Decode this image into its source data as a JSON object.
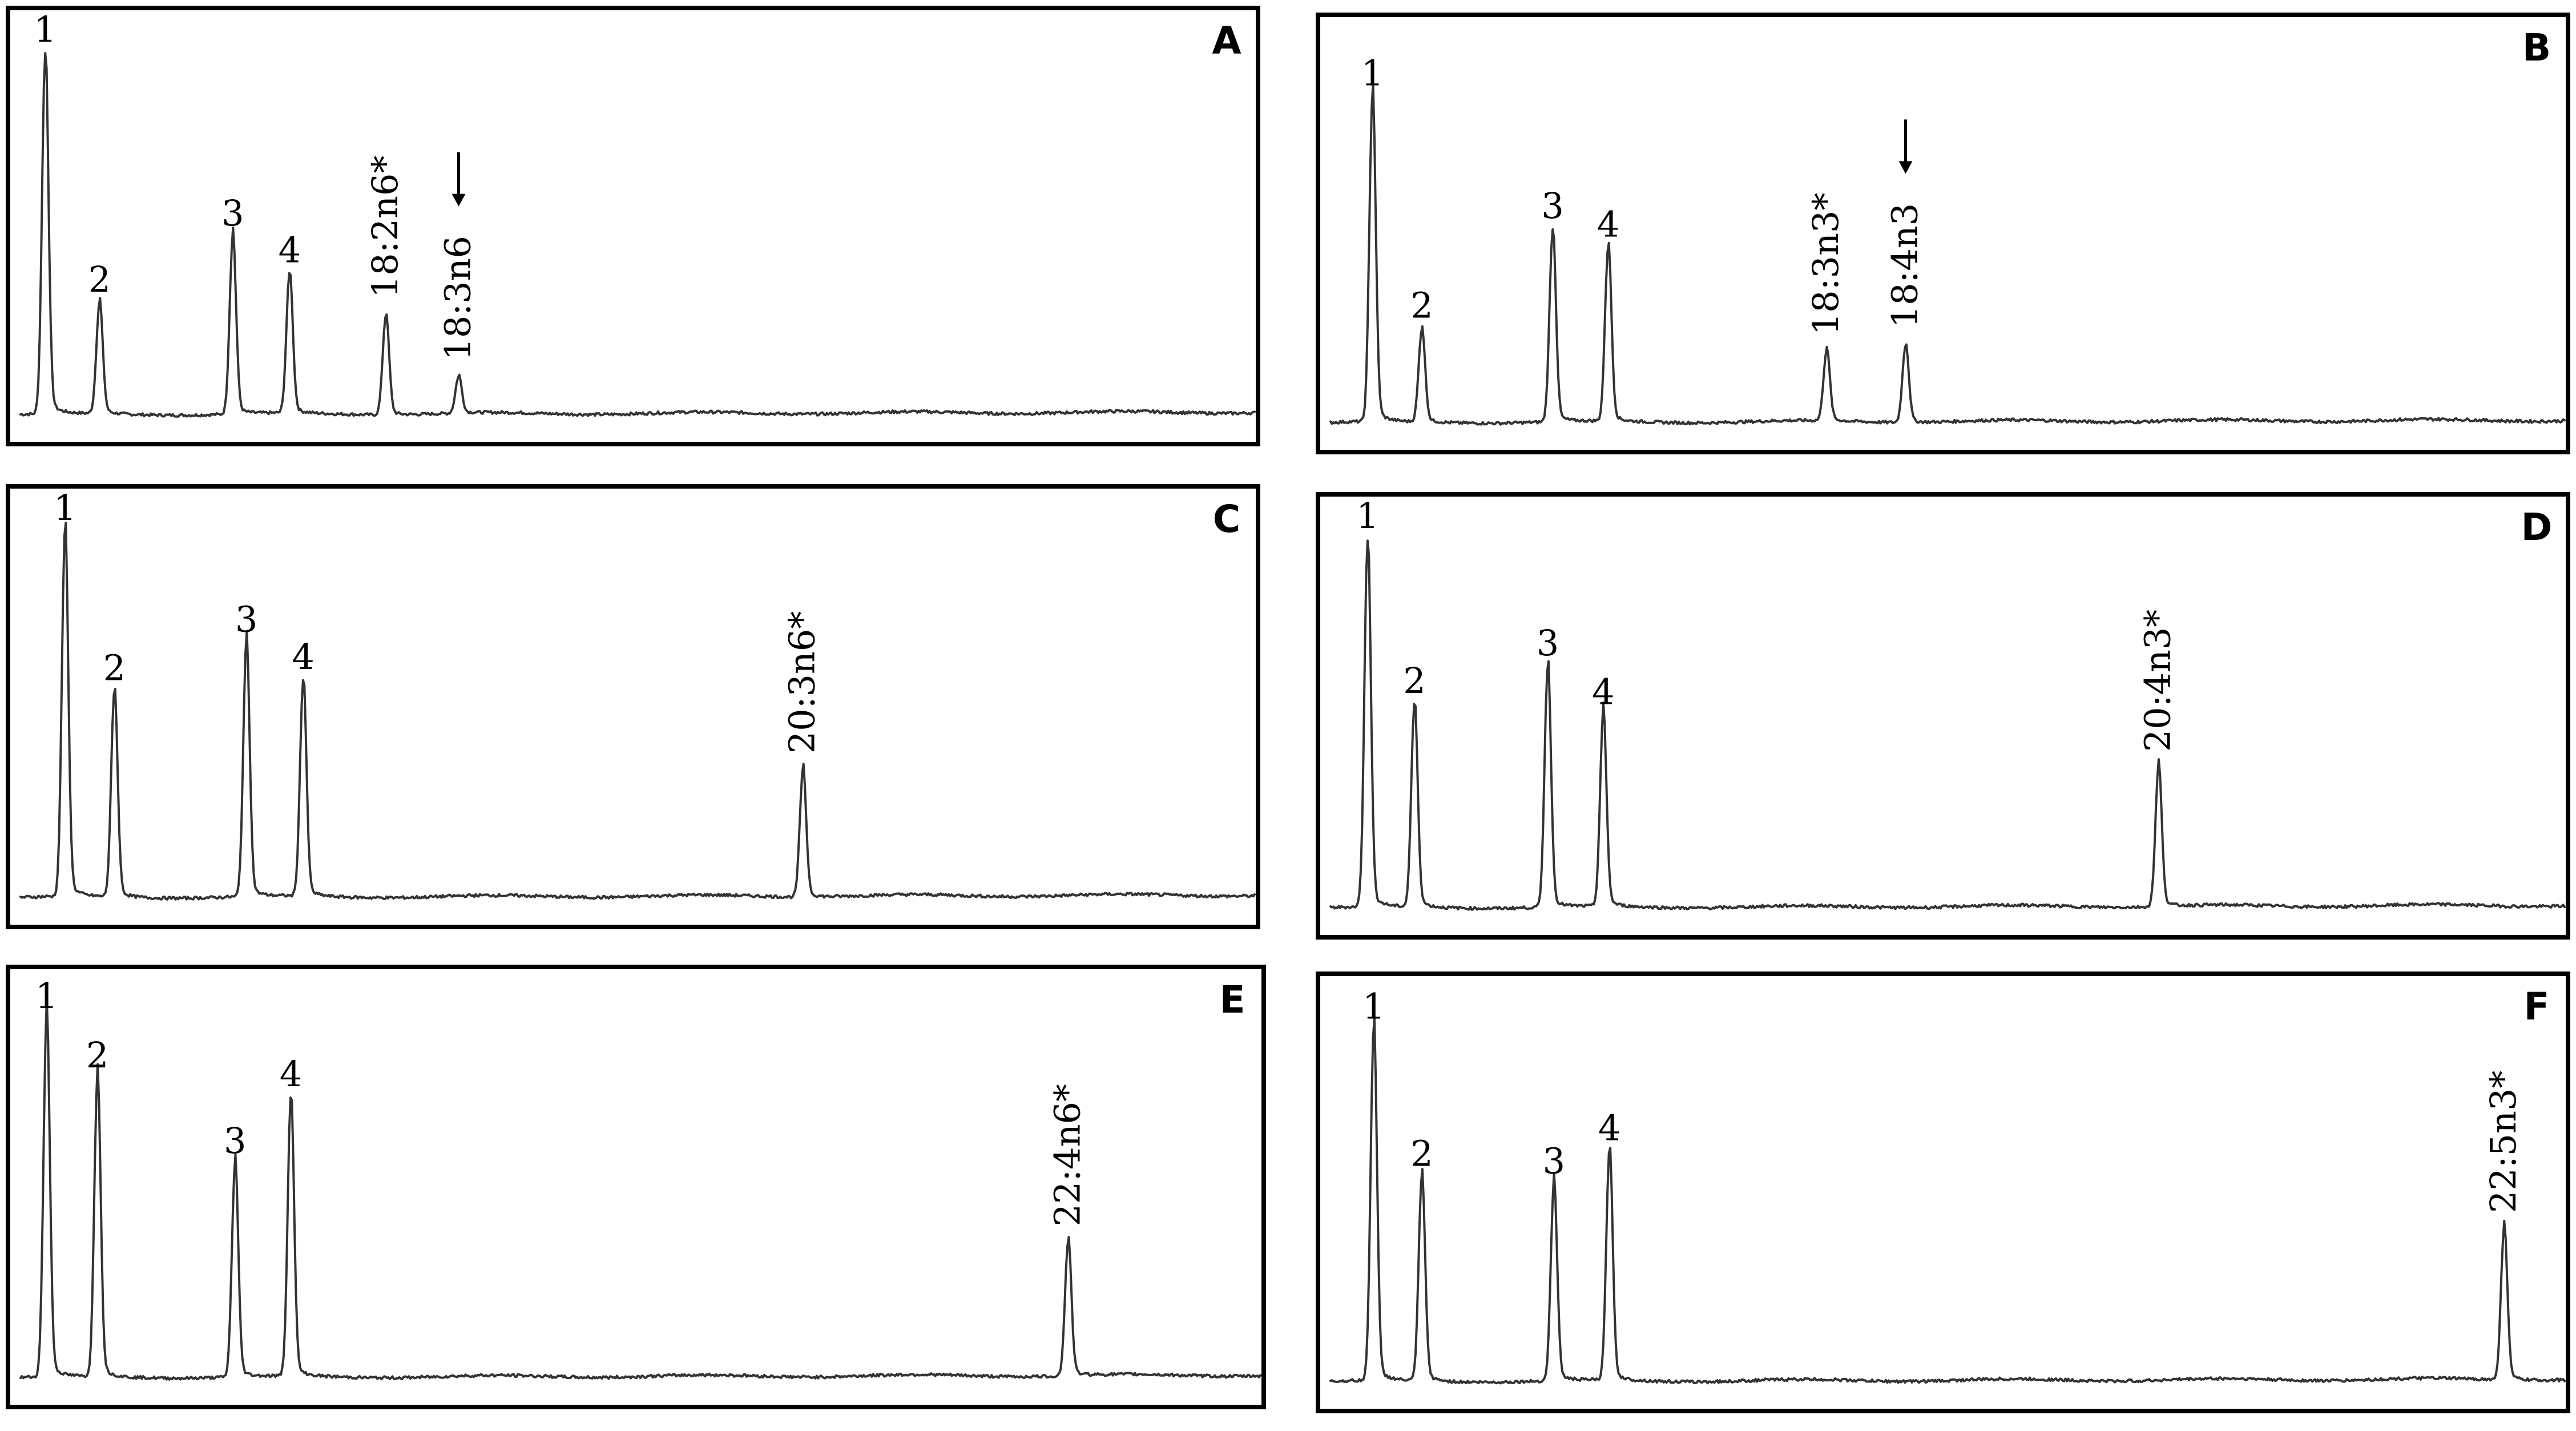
{
  "chart_data": [
    {
      "type": "line",
      "panel": "A",
      "peaks": [
        {
          "label": "1",
          "x": 0.02,
          "h": 0.98
        },
        {
          "label": "2",
          "x": 0.064,
          "h": 0.3
        },
        {
          "label": "3",
          "x": 0.172,
          "h": 0.48
        },
        {
          "label": "4",
          "x": 0.218,
          "h": 0.38
        },
        {
          "label": "18:2n6*",
          "x": 0.296,
          "h": 0.27,
          "rotated": true
        },
        {
          "label": "18:3n6",
          "x": 0.355,
          "h": 0.1,
          "rotated": true,
          "arrow": true
        }
      ]
    },
    {
      "type": "line",
      "panel": "B",
      "peaks": [
        {
          "label": "1",
          "x": 0.034,
          "h": 0.88
        },
        {
          "label": "2",
          "x": 0.074,
          "h": 0.25
        },
        {
          "label": "3",
          "x": 0.18,
          "h": 0.52
        },
        {
          "label": "4",
          "x": 0.225,
          "h": 0.47
        },
        {
          "label": "18:3n3*",
          "x": 0.402,
          "h": 0.19,
          "rotated": true
        },
        {
          "label": "18:4n3",
          "x": 0.466,
          "h": 0.21,
          "rotated": true,
          "arrow": true
        }
      ]
    },
    {
      "type": "line",
      "panel": "C",
      "peaks": [
        {
          "label": "1",
          "x": 0.036,
          "h": 0.98
        },
        {
          "label": "2",
          "x": 0.076,
          "h": 0.55
        },
        {
          "label": "3",
          "x": 0.183,
          "h": 0.68
        },
        {
          "label": "4",
          "x": 0.229,
          "h": 0.58
        },
        {
          "label": "20:3n6*",
          "x": 0.634,
          "h": 0.34,
          "rotated": true
        }
      ]
    },
    {
      "type": "line",
      "panel": "D",
      "peaks": [
        {
          "label": "1",
          "x": 0.03,
          "h": 0.98
        },
        {
          "label": "2",
          "x": 0.068,
          "h": 0.54
        },
        {
          "label": "3",
          "x": 0.176,
          "h": 0.64
        },
        {
          "label": "4",
          "x": 0.221,
          "h": 0.51
        },
        {
          "label": "20:4n3*",
          "x": 0.671,
          "h": 0.37,
          "rotated": true
        }
      ]
    },
    {
      "type": "line",
      "panel": "E",
      "peaks": [
        {
          "label": "1",
          "x": 0.021,
          "h": 0.96
        },
        {
          "label": "2",
          "x": 0.062,
          "h": 0.8
        },
        {
          "label": "3",
          "x": 0.173,
          "h": 0.57
        },
        {
          "label": "4",
          "x": 0.218,
          "h": 0.75
        },
        {
          "label": "22:4n6*",
          "x": 0.845,
          "h": 0.36,
          "rotated": true
        }
      ]
    },
    {
      "type": "line",
      "panel": "F",
      "peaks": [
        {
          "label": "1",
          "x": 0.035,
          "h": 0.95
        },
        {
          "label": "2",
          "x": 0.074,
          "h": 0.55
        },
        {
          "label": "3",
          "x": 0.181,
          "h": 0.53
        },
        {
          "label": "4",
          "x": 0.226,
          "h": 0.62
        },
        {
          "label": "22:5n3*",
          "x": 0.951,
          "h": 0.41,
          "rotated": true
        }
      ]
    }
  ]
}
